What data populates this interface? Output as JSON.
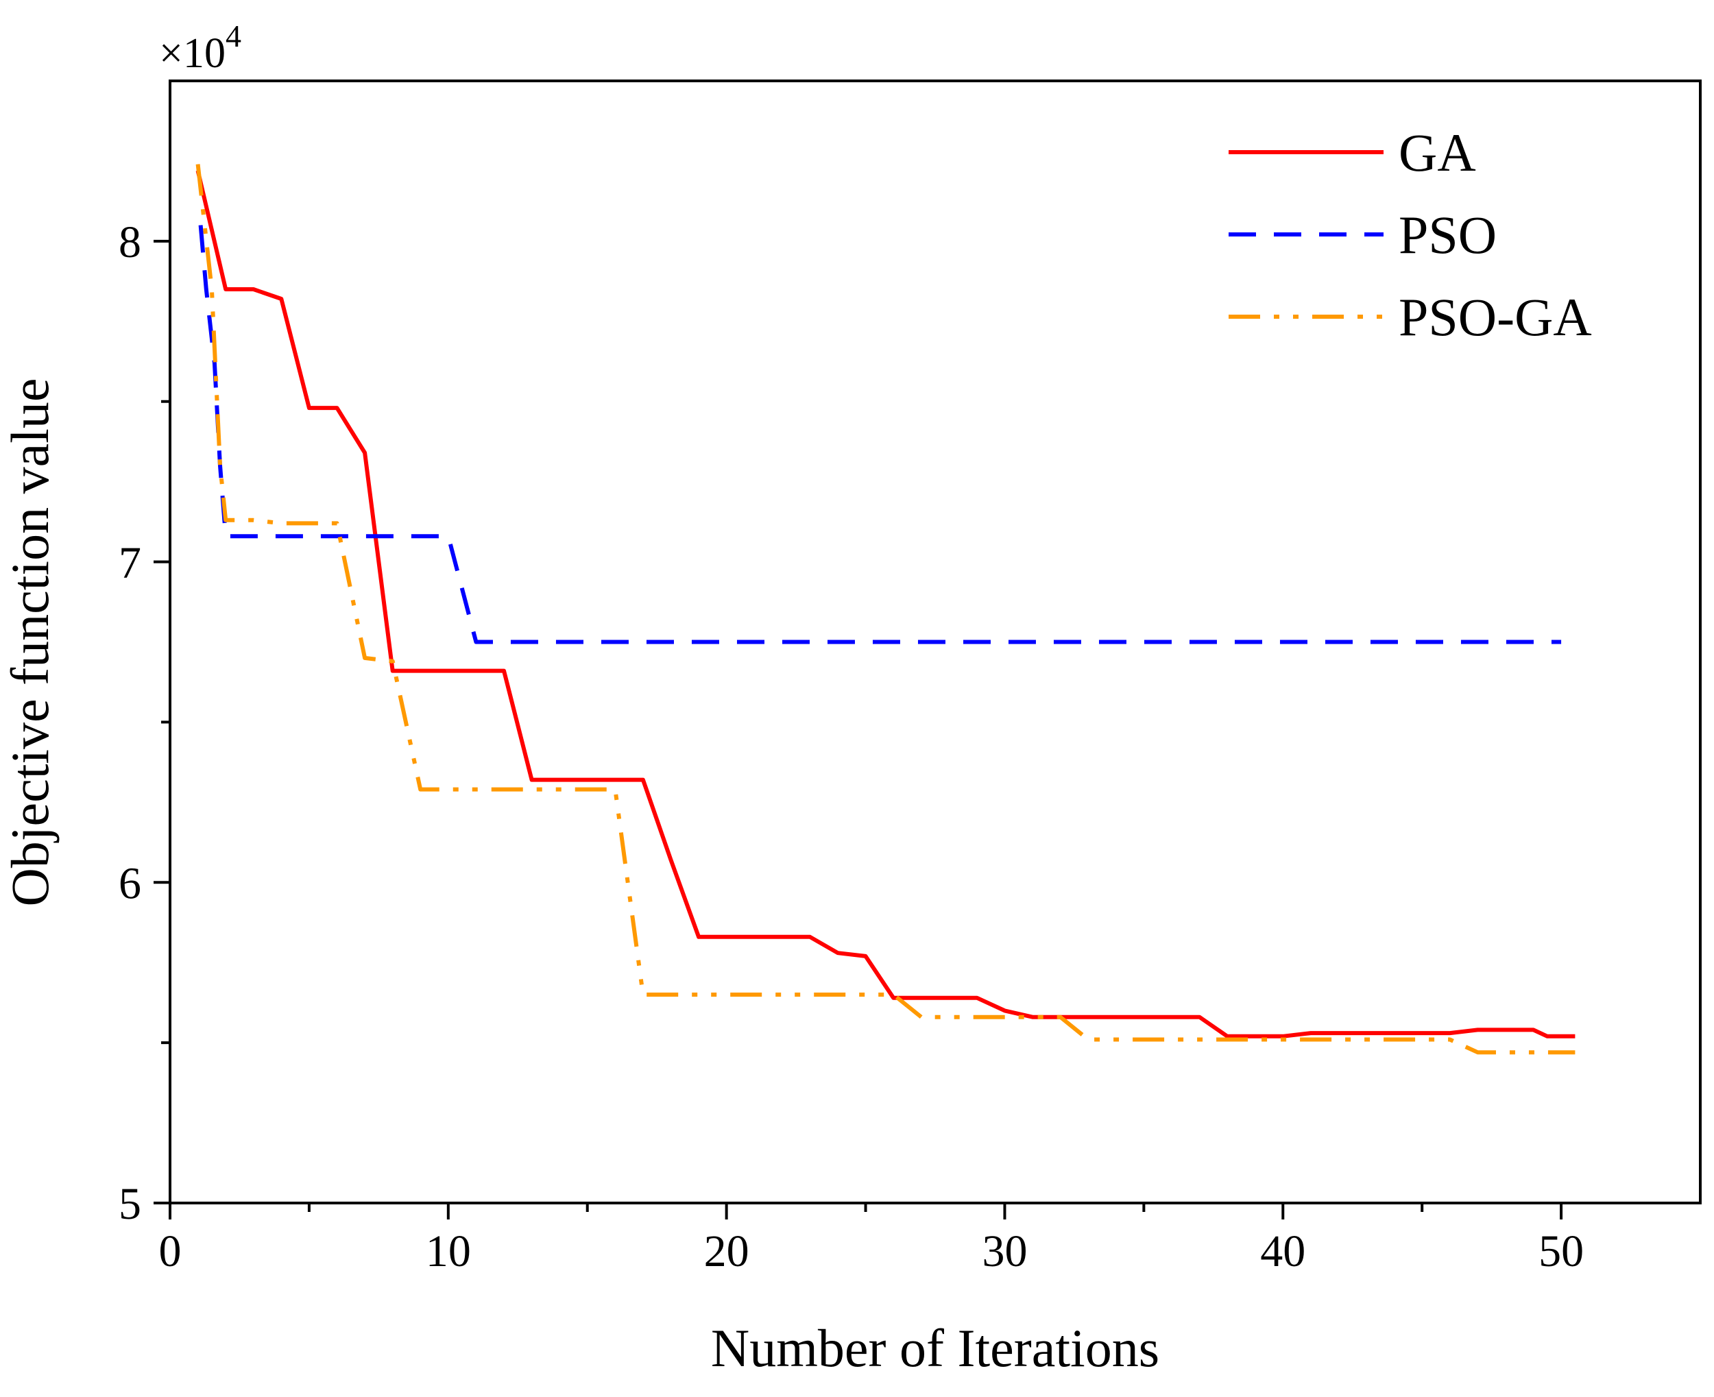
{
  "chart_data": {
    "type": "line",
    "title": "",
    "xlabel": "Number of Iterations",
    "ylabel": "Objective function value",
    "y_multiplier_label": "×10",
    "y_multiplier_exponent": "4",
    "xlim": [
      0,
      55
    ],
    "ylim": [
      5,
      8.5
    ],
    "x_ticks": [
      0,
      10,
      20,
      30,
      40,
      50
    ],
    "y_ticks": [
      5,
      6,
      7,
      8
    ],
    "grid": false,
    "legend_position": "top-right",
    "series": [
      {
        "name": "GA",
        "color": "#ff0000",
        "style": "solid",
        "points": [
          [
            1,
            8.22
          ],
          [
            2,
            7.85
          ],
          [
            3,
            7.85
          ],
          [
            4,
            7.82
          ],
          [
            5,
            7.48
          ],
          [
            6,
            7.48
          ],
          [
            7,
            7.34
          ],
          [
            8,
            6.66
          ],
          [
            9,
            6.66
          ],
          [
            10,
            6.66
          ],
          [
            11,
            6.66
          ],
          [
            12,
            6.66
          ],
          [
            13,
            6.32
          ],
          [
            14,
            6.32
          ],
          [
            15,
            6.32
          ],
          [
            16,
            6.32
          ],
          [
            17,
            6.32
          ],
          [
            18,
            6.07
          ],
          [
            19,
            5.83
          ],
          [
            20,
            5.83
          ],
          [
            21,
            5.83
          ],
          [
            22,
            5.83
          ],
          [
            23,
            5.83
          ],
          [
            24,
            5.78
          ],
          [
            25,
            5.77
          ],
          [
            26,
            5.64
          ],
          [
            27,
            5.64
          ],
          [
            28,
            5.64
          ],
          [
            29,
            5.64
          ],
          [
            30,
            5.6
          ],
          [
            31,
            5.58
          ],
          [
            32,
            5.58
          ],
          [
            33,
            5.58
          ],
          [
            34,
            5.58
          ],
          [
            35,
            5.58
          ],
          [
            36,
            5.58
          ],
          [
            37,
            5.58
          ],
          [
            38,
            5.52
          ],
          [
            39,
            5.52
          ],
          [
            40,
            5.52
          ],
          [
            41,
            5.53
          ],
          [
            42,
            5.53
          ],
          [
            43,
            5.53
          ],
          [
            44,
            5.53
          ],
          [
            45,
            5.53
          ],
          [
            46,
            5.53
          ],
          [
            47,
            5.54
          ],
          [
            48,
            5.54
          ],
          [
            49,
            5.54
          ],
          [
            49.5,
            5.52
          ],
          [
            50.5,
            5.52
          ]
        ]
      },
      {
        "name": "PSO",
        "color": "#0000ff",
        "style": "dashed",
        "points": [
          [
            1.1,
            8.05
          ],
          [
            1.3,
            7.85
          ],
          [
            1.6,
            7.62
          ],
          [
            1.8,
            7.3
          ],
          [
            2,
            7.08
          ],
          [
            3,
            7.08
          ],
          [
            4,
            7.08
          ],
          [
            5,
            7.08
          ],
          [
            6,
            7.08
          ],
          [
            7,
            7.08
          ],
          [
            8,
            7.08
          ],
          [
            9,
            7.08
          ],
          [
            10,
            7.08
          ],
          [
            11,
            6.75
          ],
          [
            12,
            6.75
          ],
          [
            15,
            6.75
          ],
          [
            20,
            6.75
          ],
          [
            25,
            6.75
          ],
          [
            30,
            6.75
          ],
          [
            35,
            6.75
          ],
          [
            40,
            6.75
          ],
          [
            45,
            6.75
          ],
          [
            50,
            6.75
          ]
        ]
      },
      {
        "name": "PSO-GA",
        "color": "#ff9900",
        "style": "dashdotdot",
        "points": [
          [
            1,
            8.24
          ],
          [
            1.5,
            7.85
          ],
          [
            1.8,
            7.3
          ],
          [
            2,
            7.13
          ],
          [
            3,
            7.13
          ],
          [
            4,
            7.12
          ],
          [
            5,
            7.12
          ],
          [
            6,
            7.12
          ],
          [
            7,
            6.7
          ],
          [
            8,
            6.69
          ],
          [
            9,
            6.29
          ],
          [
            10,
            6.29
          ],
          [
            11,
            6.29
          ],
          [
            12,
            6.29
          ],
          [
            13,
            6.29
          ],
          [
            14,
            6.29
          ],
          [
            15,
            6.29
          ],
          [
            16,
            6.29
          ],
          [
            17,
            5.65
          ],
          [
            18,
            5.65
          ],
          [
            19,
            5.65
          ],
          [
            20,
            5.65
          ],
          [
            21,
            5.65
          ],
          [
            22,
            5.65
          ],
          [
            23,
            5.65
          ],
          [
            24,
            5.65
          ],
          [
            25,
            5.65
          ],
          [
            26,
            5.65
          ],
          [
            27,
            5.58
          ],
          [
            28,
            5.58
          ],
          [
            29,
            5.58
          ],
          [
            30,
            5.58
          ],
          [
            31,
            5.58
          ],
          [
            32,
            5.58
          ],
          [
            33,
            5.51
          ],
          [
            34,
            5.51
          ],
          [
            35,
            5.51
          ],
          [
            36,
            5.51
          ],
          [
            37,
            5.51
          ],
          [
            38,
            5.51
          ],
          [
            39,
            5.51
          ],
          [
            40,
            5.51
          ],
          [
            41,
            5.51
          ],
          [
            42,
            5.51
          ],
          [
            43,
            5.51
          ],
          [
            44,
            5.51
          ],
          [
            45,
            5.51
          ],
          [
            46,
            5.51
          ],
          [
            47,
            5.47
          ],
          [
            48,
            5.47
          ],
          [
            49,
            5.47
          ],
          [
            50,
            5.47
          ],
          [
            50.5,
            5.47
          ]
        ]
      }
    ]
  }
}
